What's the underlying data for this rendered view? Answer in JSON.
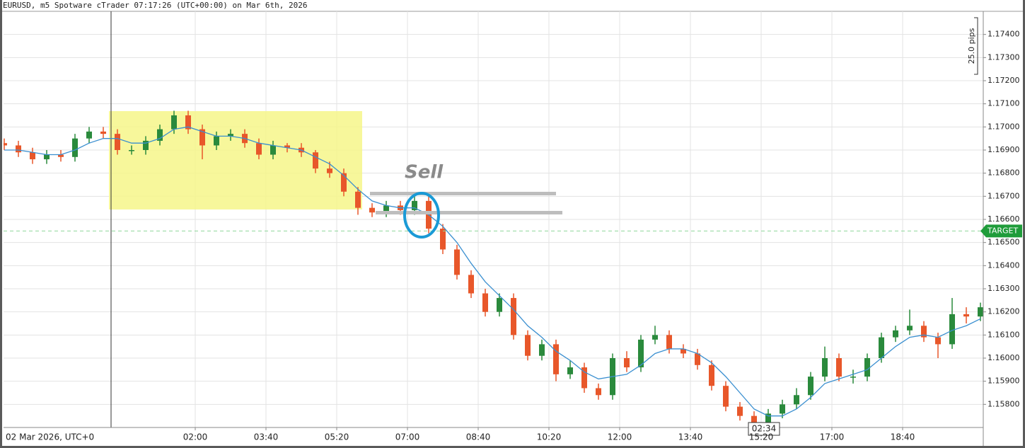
{
  "header": "EURUSD, m5 Spotware cTrader 07:17:26 (UTC+00:00) on Mar 6th, 2026",
  "chart_data": {
    "type": "candlestick",
    "date_label": "02 Mar 2026, UTC+0",
    "bull_color": "#2a8a3c",
    "bear_color": "#e8572a",
    "ma_color": "#3a8fd0",
    "grid": true,
    "xlim": [
      -151,
      1234
    ],
    "xticks": [
      {
        "value": 120,
        "label": "02:00"
      },
      {
        "value": 220,
        "label": "03:40"
      },
      {
        "value": 320,
        "label": "05:20"
      },
      {
        "value": 420,
        "label": "07:00"
      },
      {
        "value": 520,
        "label": "08:40"
      },
      {
        "value": 620,
        "label": "10:20"
      },
      {
        "value": 720,
        "label": "12:00"
      },
      {
        "value": 820,
        "label": "13:40"
      },
      {
        "value": 920,
        "label": "15:20"
      },
      {
        "value": 1020,
        "label": "17:00"
      },
      {
        "value": 1120,
        "label": "18:40"
      }
    ],
    "ylim": [
      1.157,
      1.175
    ],
    "yticks": [
      {
        "value": 1.158,
        "label": "1.15800"
      },
      {
        "value": 1.159,
        "label": "1.15900"
      },
      {
        "value": 1.16,
        "label": "1.16000"
      },
      {
        "value": 1.161,
        "label": "1.16100"
      },
      {
        "value": 1.162,
        "label": "1.16200"
      },
      {
        "value": 1.163,
        "label": "1.16300"
      },
      {
        "value": 1.164,
        "label": "1.16400"
      },
      {
        "value": 1.165,
        "label": "1.16500"
      },
      {
        "value": 1.166,
        "label": "1.16600"
      },
      {
        "value": 1.167,
        "label": "1.16700"
      },
      {
        "value": 1.168,
        "label": "1.16800"
      },
      {
        "value": 1.169,
        "label": "1.16900"
      },
      {
        "value": 1.17,
        "label": "1.17000"
      },
      {
        "value": 1.171,
        "label": "1.17100"
      },
      {
        "value": 1.172,
        "label": "1.17200"
      },
      {
        "value": 1.173,
        "label": "1.17300"
      },
      {
        "value": 1.174,
        "label": "1.17400"
      }
    ],
    "x": [
      -150,
      -130,
      -110,
      -90,
      -70,
      -50,
      -30,
      -10,
      10,
      30,
      50,
      70,
      90,
      110,
      130,
      150,
      170,
      190,
      210,
      230,
      250,
      270,
      290,
      310,
      330,
      350,
      370,
      390,
      410,
      430,
      450,
      470,
      490,
      510,
      530,
      550,
      570,
      590,
      610,
      630,
      650,
      670,
      690,
      710,
      730,
      750,
      770,
      790,
      810,
      830,
      850,
      870,
      890,
      910,
      930,
      950,
      970,
      990,
      1010,
      1030,
      1050,
      1070,
      1090,
      1110,
      1130,
      1150,
      1170,
      1190,
      1210,
      1230
    ],
    "ohlc": [
      [
        1.1693,
        1.1695,
        1.169,
        1.1692
      ],
      [
        1.1692,
        1.1694,
        1.1687,
        1.1689
      ],
      [
        1.1689,
        1.1691,
        1.1684,
        1.1686
      ],
      [
        1.1686,
        1.169,
        1.1684,
        1.1688
      ],
      [
        1.1688,
        1.169,
        1.1685,
        1.1687
      ],
      [
        1.1687,
        1.1697,
        1.1685,
        1.1695
      ],
      [
        1.1695,
        1.17,
        1.1693,
        1.1698
      ],
      [
        1.1698,
        1.17,
        1.1695,
        1.1697
      ],
      [
        1.1697,
        1.1699,
        1.1688,
        1.169
      ],
      [
        1.169,
        1.1692,
        1.1688,
        1.169
      ],
      [
        1.169,
        1.1696,
        1.1688,
        1.1694
      ],
      [
        1.1694,
        1.1701,
        1.1692,
        1.1699
      ],
      [
        1.1699,
        1.1707,
        1.1697,
        1.1705
      ],
      [
        1.1705,
        1.1707,
        1.1697,
        1.1699
      ],
      [
        1.1699,
        1.1701,
        1.1686,
        1.1692
      ],
      [
        1.1692,
        1.1698,
        1.169,
        1.1696
      ],
      [
        1.1696,
        1.1699,
        1.1694,
        1.1697
      ],
      [
        1.1697,
        1.1699,
        1.1691,
        1.1693
      ],
      [
        1.1693,
        1.1695,
        1.1686,
        1.1688
      ],
      [
        1.1688,
        1.1694,
        1.1686,
        1.1692
      ],
      [
        1.1692,
        1.1693,
        1.1689,
        1.1691
      ],
      [
        1.1691,
        1.1693,
        1.1687,
        1.1689
      ],
      [
        1.1689,
        1.169,
        1.168,
        1.1682
      ],
      [
        1.1682,
        1.1685,
        1.1678,
        1.168
      ],
      [
        1.168,
        1.1682,
        1.167,
        1.1672
      ],
      [
        1.1672,
        1.1674,
        1.1662,
        1.1665
      ],
      [
        1.1665,
        1.1667,
        1.1661,
        1.1663
      ],
      [
        1.1663,
        1.1668,
        1.1661,
        1.1666
      ],
      [
        1.1666,
        1.1668,
        1.1662,
        1.1664
      ],
      [
        1.1664,
        1.167,
        1.1662,
        1.1668
      ],
      [
        1.1668,
        1.167,
        1.1654,
        1.1656
      ],
      [
        1.1656,
        1.1658,
        1.1645,
        1.1647
      ],
      [
        1.1647,
        1.1649,
        1.1634,
        1.1636
      ],
      [
        1.1636,
        1.1638,
        1.1626,
        1.1628
      ],
      [
        1.1628,
        1.163,
        1.1618,
        1.162
      ],
      [
        1.162,
        1.1628,
        1.1618,
        1.1626
      ],
      [
        1.1626,
        1.1628,
        1.1608,
        1.161
      ],
      [
        1.161,
        1.1612,
        1.1599,
        1.1601
      ],
      [
        1.1601,
        1.1608,
        1.1599,
        1.1606
      ],
      [
        1.1606,
        1.1608,
        1.159,
        1.1593
      ],
      [
        1.1593,
        1.1599,
        1.1591,
        1.1596
      ],
      [
        1.1596,
        1.1598,
        1.1585,
        1.1587
      ],
      [
        1.1587,
        1.1589,
        1.1582,
        1.1584
      ],
      [
        1.1584,
        1.1602,
        1.1582,
        1.16
      ],
      [
        1.16,
        1.1603,
        1.1594,
        1.1596
      ],
      [
        1.1596,
        1.161,
        1.1594,
        1.1608
      ],
      [
        1.1608,
        1.1614,
        1.1606,
        1.161
      ],
      [
        1.161,
        1.1612,
        1.1602,
        1.1604
      ],
      [
        1.1604,
        1.1606,
        1.16,
        1.1602
      ],
      [
        1.1602,
        1.1604,
        1.1595,
        1.1597
      ],
      [
        1.1597,
        1.1599,
        1.1586,
        1.1588
      ],
      [
        1.1588,
        1.159,
        1.1577,
        1.1579
      ],
      [
        1.1579,
        1.1581,
        1.1573,
        1.1575
      ],
      [
        1.1575,
        1.1577,
        1.157,
        1.1571
      ],
      [
        1.1571,
        1.1578,
        1.157,
        1.1576
      ],
      [
        1.1576,
        1.1582,
        1.1574,
        1.158
      ],
      [
        1.158,
        1.1587,
        1.1578,
        1.1584
      ],
      [
        1.1584,
        1.1594,
        1.1582,
        1.1592
      ],
      [
        1.1592,
        1.1605,
        1.159,
        1.16
      ],
      [
        1.16,
        1.1602,
        1.159,
        1.1592
      ],
      [
        1.1592,
        1.1595,
        1.1589,
        1.1592
      ],
      [
        1.1592,
        1.1602,
        1.159,
        1.16
      ],
      [
        1.16,
        1.1611,
        1.1598,
        1.1609
      ],
      [
        1.1609,
        1.1614,
        1.1607,
        1.1612
      ],
      [
        1.1612,
        1.1621,
        1.161,
        1.1614
      ],
      [
        1.1614,
        1.1616,
        1.1607,
        1.1609
      ],
      [
        1.1609,
        1.1611,
        1.16,
        1.1606
      ],
      [
        1.1606,
        1.1626,
        1.1604,
        1.1619
      ],
      [
        1.1619,
        1.1622,
        1.1615,
        1.1618
      ],
      [
        1.1618,
        1.1624,
        1.1616,
        1.1622
      ]
    ],
    "ma": [
      1.169,
      1.169,
      1.1689,
      1.1688,
      1.1688,
      1.169,
      1.1693,
      1.1695,
      1.1695,
      1.1693,
      1.1693,
      1.1695,
      1.1699,
      1.17,
      1.1698,
      1.1696,
      1.1696,
      1.1695,
      1.1693,
      1.1692,
      1.1691,
      1.169,
      1.1687,
      1.1684,
      1.1679,
      1.1673,
      1.1668,
      1.1666,
      1.1665,
      1.1665,
      1.1662,
      1.1657,
      1.165,
      1.1641,
      1.1633,
      1.1627,
      1.1621,
      1.1614,
      1.1609,
      1.1603,
      1.1599,
      1.1594,
      1.1591,
      1.1592,
      1.1593,
      1.1597,
      1.1602,
      1.1604,
      1.1604,
      1.1602,
      1.1598,
      1.1592,
      1.1585,
      1.1578,
      1.1575,
      1.1575,
      1.1578,
      1.1583,
      1.1589,
      1.1591,
      1.1593,
      1.1595,
      1.16,
      1.1605,
      1.1609,
      1.161,
      1.1609,
      1.1612,
      1.1614,
      1.1617
    ],
    "target": {
      "value": 1.1655,
      "label": "TARGET"
    },
    "annotations": {
      "sell": "Sell",
      "pips": "25.0 pips",
      "timer": "02:34"
    }
  }
}
